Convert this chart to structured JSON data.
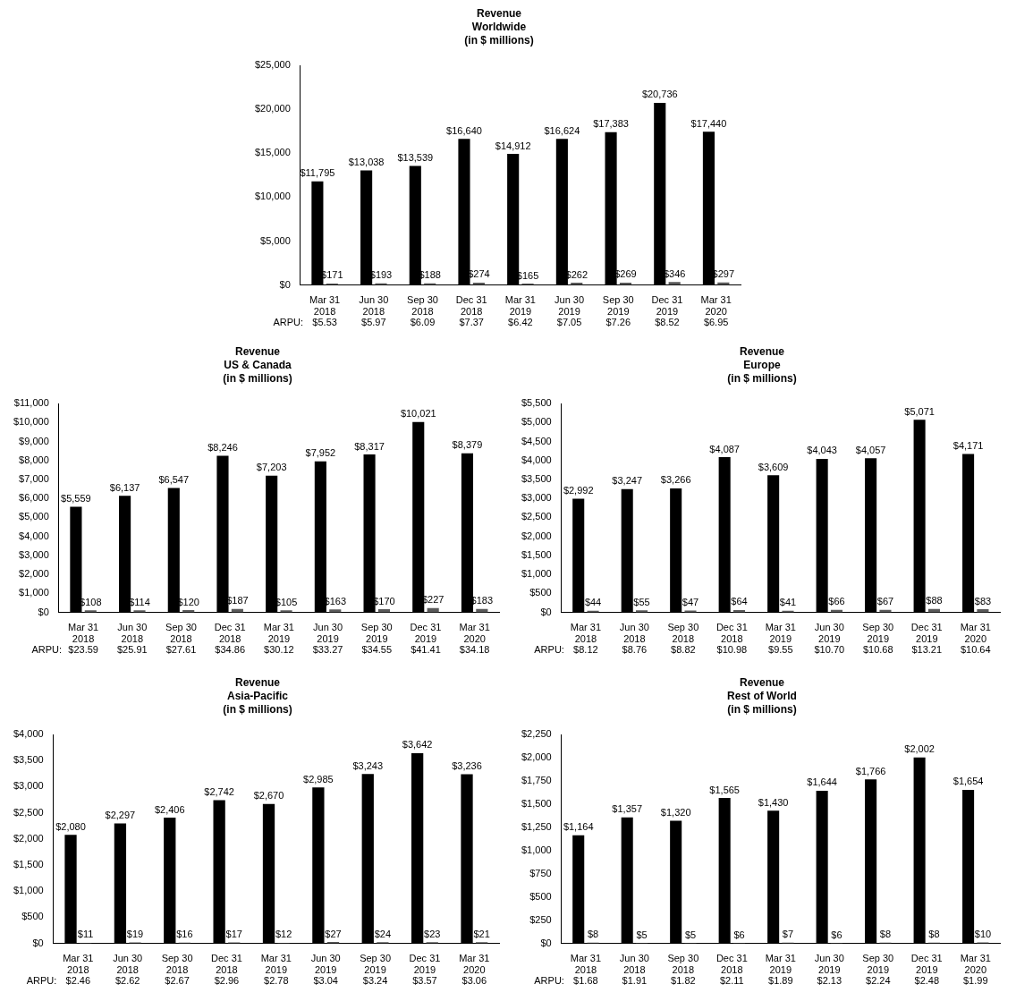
{
  "chart_data": [
    {
      "type": "bar",
      "title": "Revenue\nWorldwide\n(in $ millions)",
      "categories": [
        "Mar 31 2018",
        "Jun 30 2018",
        "Sep 30 2018",
        "Dec 31 2018",
        "Mar 31 2019",
        "Jun 30 2019",
        "Sep 30 2019",
        "Dec 31 2019",
        "Mar 31 2020"
      ],
      "series": [
        {
          "color": "#000000",
          "values": [
            11795,
            13038,
            13539,
            16640,
            14912,
            16624,
            17383,
            20736,
            17440
          ],
          "value_labels": [
            "$11,795",
            "$13,038",
            "$13,539",
            "$16,640",
            "$14,912",
            "$16,624",
            "$17,383",
            "$20,736",
            "$17,440"
          ]
        },
        {
          "color": "#595959",
          "values": [
            171,
            193,
            188,
            274,
            165,
            262,
            269,
            346,
            297
          ],
          "value_labels": [
            "$171",
            "$193",
            "$188",
            "$274",
            "$165",
            "$262",
            "$269",
            "$346",
            "$297"
          ]
        }
      ],
      "ylim": [
        0,
        25000
      ],
      "yticks": [
        {
          "value": 0,
          "label": "$0"
        },
        {
          "value": 5000,
          "label": "$5,000"
        },
        {
          "value": 10000,
          "label": "$10,000"
        },
        {
          "value": 15000,
          "label": "$15,000"
        },
        {
          "value": 20000,
          "label": "$20,000"
        },
        {
          "value": 25000,
          "label": "$25,000"
        }
      ],
      "grid": false,
      "legend": false,
      "annotations": [
        "ARPU:",
        "$5.53",
        "$5.97",
        "$6.09",
        "$7.37",
        "$6.42",
        "$7.05",
        "$7.26",
        "$8.52",
        "$6.95"
      ]
    },
    {
      "type": "bar",
      "title": "Revenue\nUS & Canada\n(in $ millions)",
      "categories": [
        "Mar 31 2018",
        "Jun 30 2018",
        "Sep 30 2018",
        "Dec 31 2018",
        "Mar 31 2019",
        "Jun 30 2019",
        "Sep 30 2019",
        "Dec 31 2019",
        "Mar 31 2020"
      ],
      "series": [
        {
          "color": "#000000",
          "values": [
            5559,
            6137,
            6547,
            8246,
            7203,
            7952,
            8317,
            10021,
            8379
          ],
          "value_labels": [
            "$5,559",
            "$6,137",
            "$6,547",
            "$8,246",
            "$7,203",
            "$7,952",
            "$8,317",
            "$10,021",
            "$8,379"
          ]
        },
        {
          "color": "#595959",
          "values": [
            108,
            114,
            120,
            187,
            105,
            163,
            170,
            227,
            183
          ],
          "value_labels": [
            "$108",
            "$114",
            "$120",
            "$187",
            "$105",
            "$163",
            "$170",
            "$227",
            "$183"
          ]
        }
      ],
      "ylim": [
        0,
        11000
      ],
      "yticks": [
        {
          "value": 0,
          "label": "$0"
        },
        {
          "value": 1000,
          "label": "$1,000"
        },
        {
          "value": 2000,
          "label": "$2,000"
        },
        {
          "value": 3000,
          "label": "$3,000"
        },
        {
          "value": 4000,
          "label": "$4,000"
        },
        {
          "value": 5000,
          "label": "$5,000"
        },
        {
          "value": 6000,
          "label": "$6,000"
        },
        {
          "value": 7000,
          "label": "$7,000"
        },
        {
          "value": 8000,
          "label": "$8,000"
        },
        {
          "value": 9000,
          "label": "$9,000"
        },
        {
          "value": 10000,
          "label": "$10,000"
        },
        {
          "value": 11000,
          "label": "$11,000"
        }
      ],
      "grid": false,
      "legend": false,
      "annotations": [
        "ARPU:",
        "$23.59",
        "$25.91",
        "$27.61",
        "$34.86",
        "$30.12",
        "$33.27",
        "$34.55",
        "$41.41",
        "$34.18"
      ]
    },
    {
      "type": "bar",
      "title": "Revenue\nEurope\n(in $ millions)",
      "categories": [
        "Mar 31 2018",
        "Jun 30 2018",
        "Sep 30 2018",
        "Dec 31 2018",
        "Mar 31 2019",
        "Jun 30 2019",
        "Sep 30 2019",
        "Dec 31 2019",
        "Mar 31 2020"
      ],
      "series": [
        {
          "color": "#000000",
          "values": [
            2992,
            3247,
            3266,
            4087,
            3609,
            4043,
            4057,
            5071,
            4171
          ],
          "value_labels": [
            "$2,992",
            "$3,247",
            "$3,266",
            "$4,087",
            "$3,609",
            "$4,043",
            "$4,057",
            "$5,071",
            "$4,171"
          ]
        },
        {
          "color": "#595959",
          "values": [
            44,
            55,
            47,
            64,
            41,
            66,
            67,
            88,
            83
          ],
          "value_labels": [
            "$44",
            "$55",
            "$47",
            "$64",
            "$41",
            "$66",
            "$67",
            "$88",
            "$83"
          ]
        }
      ],
      "ylim": [
        0,
        5500
      ],
      "yticks": [
        {
          "value": 0,
          "label": "$0"
        },
        {
          "value": 500,
          "label": "$500"
        },
        {
          "value": 1000,
          "label": "$1,000"
        },
        {
          "value": 1500,
          "label": "$1,500"
        },
        {
          "value": 2000,
          "label": "$2,000"
        },
        {
          "value": 2500,
          "label": "$2,500"
        },
        {
          "value": 3000,
          "label": "$3,000"
        },
        {
          "value": 3500,
          "label": "$3,500"
        },
        {
          "value": 4000,
          "label": "$4,000"
        },
        {
          "value": 4500,
          "label": "$4,500"
        },
        {
          "value": 5000,
          "label": "$5,000"
        },
        {
          "value": 5500,
          "label": "$5,500"
        }
      ],
      "grid": false,
      "legend": false,
      "annotations": [
        "ARPU:",
        "$8.12",
        "$8.76",
        "$8.82",
        "$10.98",
        "$9.55",
        "$10.70",
        "$10.68",
        "$13.21",
        "$10.64"
      ]
    },
    {
      "type": "bar",
      "title": "Revenue\nAsia-Pacific\n(in $ millions)",
      "categories": [
        "Mar 31 2018",
        "Jun 30 2018",
        "Sep 30 2018",
        "Dec 31 2018",
        "Mar 31 2019",
        "Jun 30 2019",
        "Sep 30 2019",
        "Dec 31 2019",
        "Mar 31 2020"
      ],
      "series": [
        {
          "color": "#000000",
          "values": [
            2080,
            2297,
            2406,
            2742,
            2670,
            2985,
            3243,
            3642,
            3236
          ],
          "value_labels": [
            "$2,080",
            "$2,297",
            "$2,406",
            "$2,742",
            "$2,670",
            "$2,985",
            "$3,243",
            "$3,642",
            "$3,236"
          ]
        },
        {
          "color": "#595959",
          "values": [
            11,
            19,
            16,
            17,
            12,
            27,
            24,
            23,
            21
          ],
          "value_labels": [
            "$11",
            "$19",
            "$16",
            "$17",
            "$12",
            "$27",
            "$24",
            "$23",
            "$21"
          ]
        }
      ],
      "ylim": [
        0,
        4000
      ],
      "yticks": [
        {
          "value": 0,
          "label": "$0"
        },
        {
          "value": 500,
          "label": "$500"
        },
        {
          "value": 1000,
          "label": "$1,000"
        },
        {
          "value": 1500,
          "label": "$1,500"
        },
        {
          "value": 2000,
          "label": "$2,000"
        },
        {
          "value": 2500,
          "label": "$2,500"
        },
        {
          "value": 3000,
          "label": "$3,000"
        },
        {
          "value": 3500,
          "label": "$3,500"
        },
        {
          "value": 4000,
          "label": "$4,000"
        }
      ],
      "grid": false,
      "legend": false,
      "annotations": [
        "ARPU:",
        "$2.46",
        "$2.62",
        "$2.67",
        "$2.96",
        "$2.78",
        "$3.04",
        "$3.24",
        "$3.57",
        "$3.06"
      ]
    },
    {
      "type": "bar",
      "title": "Revenue\nRest of World\n(in $ millions)",
      "categories": [
        "Mar 31 2018",
        "Jun 30 2018",
        "Sep 30 2018",
        "Dec 31 2018",
        "Mar 31 2019",
        "Jun 30 2019",
        "Sep 30 2019",
        "Dec 31 2019",
        "Mar 31 2020"
      ],
      "series": [
        {
          "color": "#000000",
          "values": [
            1164,
            1357,
            1320,
            1565,
            1430,
            1644,
            1766,
            2002,
            1654
          ],
          "value_labels": [
            "$1,164",
            "$1,357",
            "$1,320",
            "$1,565",
            "$1,430",
            "$1,644",
            "$1,766",
            "$2,002",
            "$1,654"
          ]
        },
        {
          "color": "#595959",
          "values": [
            8,
            5,
            5,
            6,
            7,
            6,
            8,
            8,
            10
          ],
          "value_labels": [
            "$8",
            "$5",
            "$5",
            "$6",
            "$7",
            "$6",
            "$8",
            "$8",
            "$10"
          ]
        }
      ],
      "ylim": [
        0,
        2250
      ],
      "yticks": [
        {
          "value": 0,
          "label": "$0"
        },
        {
          "value": 250,
          "label": "$250"
        },
        {
          "value": 500,
          "label": "$500"
        },
        {
          "value": 750,
          "label": "$750"
        },
        {
          "value": 1000,
          "label": "$1,000"
        },
        {
          "value": 1250,
          "label": "$1,250"
        },
        {
          "value": 1500,
          "label": "$1,500"
        },
        {
          "value": 1750,
          "label": "$1,750"
        },
        {
          "value": 2000,
          "label": "$2,000"
        },
        {
          "value": 2250,
          "label": "$2,250"
        }
      ],
      "grid": false,
      "legend": false,
      "annotations": [
        "ARPU:",
        "$1.68",
        "$1.91",
        "$1.82",
        "$2.11",
        "$1.89",
        "$2.13",
        "$2.24",
        "$2.48",
        "$1.99"
      ]
    }
  ]
}
